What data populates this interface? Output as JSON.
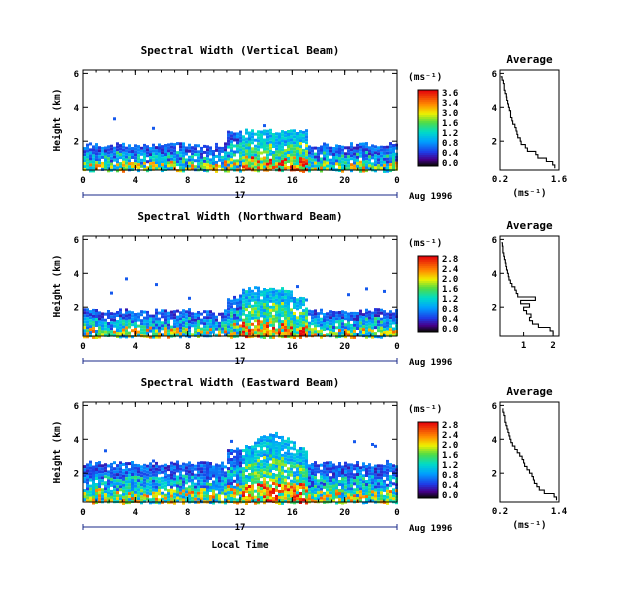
{
  "figure": {
    "xlabel": "Local Time",
    "date_label": "Aug 1996",
    "day_label": "17"
  },
  "chart_data": [
    {
      "type": "heatmap",
      "title": "Spectral Width (Vertical Beam)",
      "ylabel": "Height (km)",
      "xticks": [
        "0",
        "4",
        "8",
        "12",
        "16",
        "20",
        "0"
      ],
      "yticks": [
        "6",
        "4",
        "2"
      ],
      "xlim": [
        0,
        24
      ],
      "ylim": [
        0.3,
        6.2
      ],
      "colorbar": {
        "unit": "(ms⁻¹)",
        "ticks": [
          "3.6",
          "3.4",
          "3.0",
          "1.6",
          "1.2",
          "0.8",
          "0.4",
          "0.0"
        ],
        "range": [
          0,
          3.6
        ]
      },
      "profile": {
        "title": "Average",
        "xlabel": "(ms⁻¹)",
        "xticks": [
          "0.2",
          "1.6"
        ],
        "yticks": [
          "6",
          "4",
          "2"
        ],
        "xlim": [
          0.2,
          1.6
        ],
        "ylim": [
          0.3,
          6.2
        ],
        "height": [
          0.4,
          0.6,
          0.8,
          1.0,
          1.2,
          1.4,
          1.6,
          1.8,
          2.0,
          2.2,
          2.4,
          2.6,
          2.8,
          3.0,
          3.2,
          3.4,
          3.6,
          3.8,
          4.0,
          4.2,
          4.4,
          4.6,
          4.8,
          5.0,
          5.2,
          5.4,
          5.6,
          5.8
        ],
        "width": [
          1.5,
          1.45,
          1.3,
          1.1,
          1.05,
          0.85,
          0.8,
          0.7,
          0.68,
          0.62,
          0.6,
          0.58,
          0.55,
          0.5,
          0.48,
          0.45,
          0.45,
          0.42,
          0.4,
          0.38,
          0.36,
          0.35,
          0.32,
          0.3,
          0.3,
          0.28,
          0.25,
          0.22
        ]
      }
    },
    {
      "type": "heatmap",
      "title": "Spectral Width (Northward Beam)",
      "ylabel": "Height (km)",
      "xticks": [
        "0",
        "4",
        "8",
        "12",
        "16",
        "20",
        "0"
      ],
      "yticks": [
        "6",
        "4",
        "2"
      ],
      "xlim": [
        0,
        24
      ],
      "ylim": [
        0.3,
        6.2
      ],
      "colorbar": {
        "unit": "(ms⁻¹)",
        "ticks": [
          "2.8",
          "2.4",
          "2.0",
          "1.6",
          "1.2",
          "0.8",
          "0.4",
          "0.0"
        ],
        "range": [
          0,
          2.8
        ]
      },
      "profile": {
        "title": "Average",
        "xlabel": "",
        "xticks": [
          "1",
          "2"
        ],
        "yticks": [
          "6",
          "4",
          "2"
        ],
        "xlim": [
          0.2,
          2.2
        ],
        "ylim": [
          0.3,
          6.2
        ],
        "height": [
          0.4,
          0.6,
          0.8,
          1.0,
          1.2,
          1.4,
          1.6,
          1.8,
          2.0,
          2.2,
          2.4,
          2.6,
          2.8,
          3.0,
          3.2,
          3.4,
          3.6,
          3.8,
          4.0,
          4.2,
          4.4,
          4.6,
          4.8,
          5.0,
          5.2,
          5.4,
          5.6,
          5.8
        ],
        "width": [
          2.0,
          1.9,
          1.5,
          1.3,
          1.2,
          1.25,
          1.1,
          1.0,
          1.2,
          0.9,
          1.4,
          0.8,
          0.75,
          0.7,
          0.6,
          0.55,
          0.5,
          0.48,
          0.45,
          0.42,
          0.4,
          0.38,
          0.35,
          0.33,
          0.3,
          0.3,
          0.28,
          0.25
        ]
      }
    },
    {
      "type": "heatmap",
      "title": "Spectral Width (Eastward Beam)",
      "ylabel": "Height (km)",
      "xticks": [
        "0",
        "4",
        "8",
        "12",
        "16",
        "20",
        "0"
      ],
      "yticks": [
        "6",
        "4",
        "2"
      ],
      "xlim": [
        0,
        24
      ],
      "ylim": [
        0.3,
        6.2
      ],
      "colorbar": {
        "unit": "(ms⁻¹)",
        "ticks": [
          "2.8",
          "2.4",
          "2.0",
          "1.6",
          "1.2",
          "0.8",
          "0.4",
          "0.0"
        ],
        "range": [
          0,
          2.8
        ]
      },
      "profile": {
        "title": "Average",
        "xlabel": "(ms⁻¹)",
        "xticks": [
          "0.2",
          "1.4"
        ],
        "yticks": [
          "6",
          "4",
          "2"
        ],
        "xlim": [
          0.2,
          1.4
        ],
        "ylim": [
          0.3,
          6.2
        ],
        "height": [
          0.4,
          0.6,
          0.8,
          1.0,
          1.2,
          1.4,
          1.6,
          1.8,
          2.0,
          2.2,
          2.4,
          2.6,
          2.8,
          3.0,
          3.2,
          3.4,
          3.6,
          3.8,
          4.0,
          4.2,
          4.4,
          4.6,
          4.8,
          5.0,
          5.2,
          5.4,
          5.6,
          5.8
        ],
        "width": [
          1.35,
          1.3,
          1.1,
          1.0,
          0.95,
          0.9,
          0.88,
          0.85,
          0.8,
          0.75,
          0.7,
          0.68,
          0.65,
          0.6,
          0.55,
          0.5,
          0.45,
          0.42,
          0.4,
          0.38,
          0.36,
          0.34,
          0.32,
          0.3,
          0.3,
          0.28,
          0.26,
          0.25
        ]
      }
    }
  ]
}
